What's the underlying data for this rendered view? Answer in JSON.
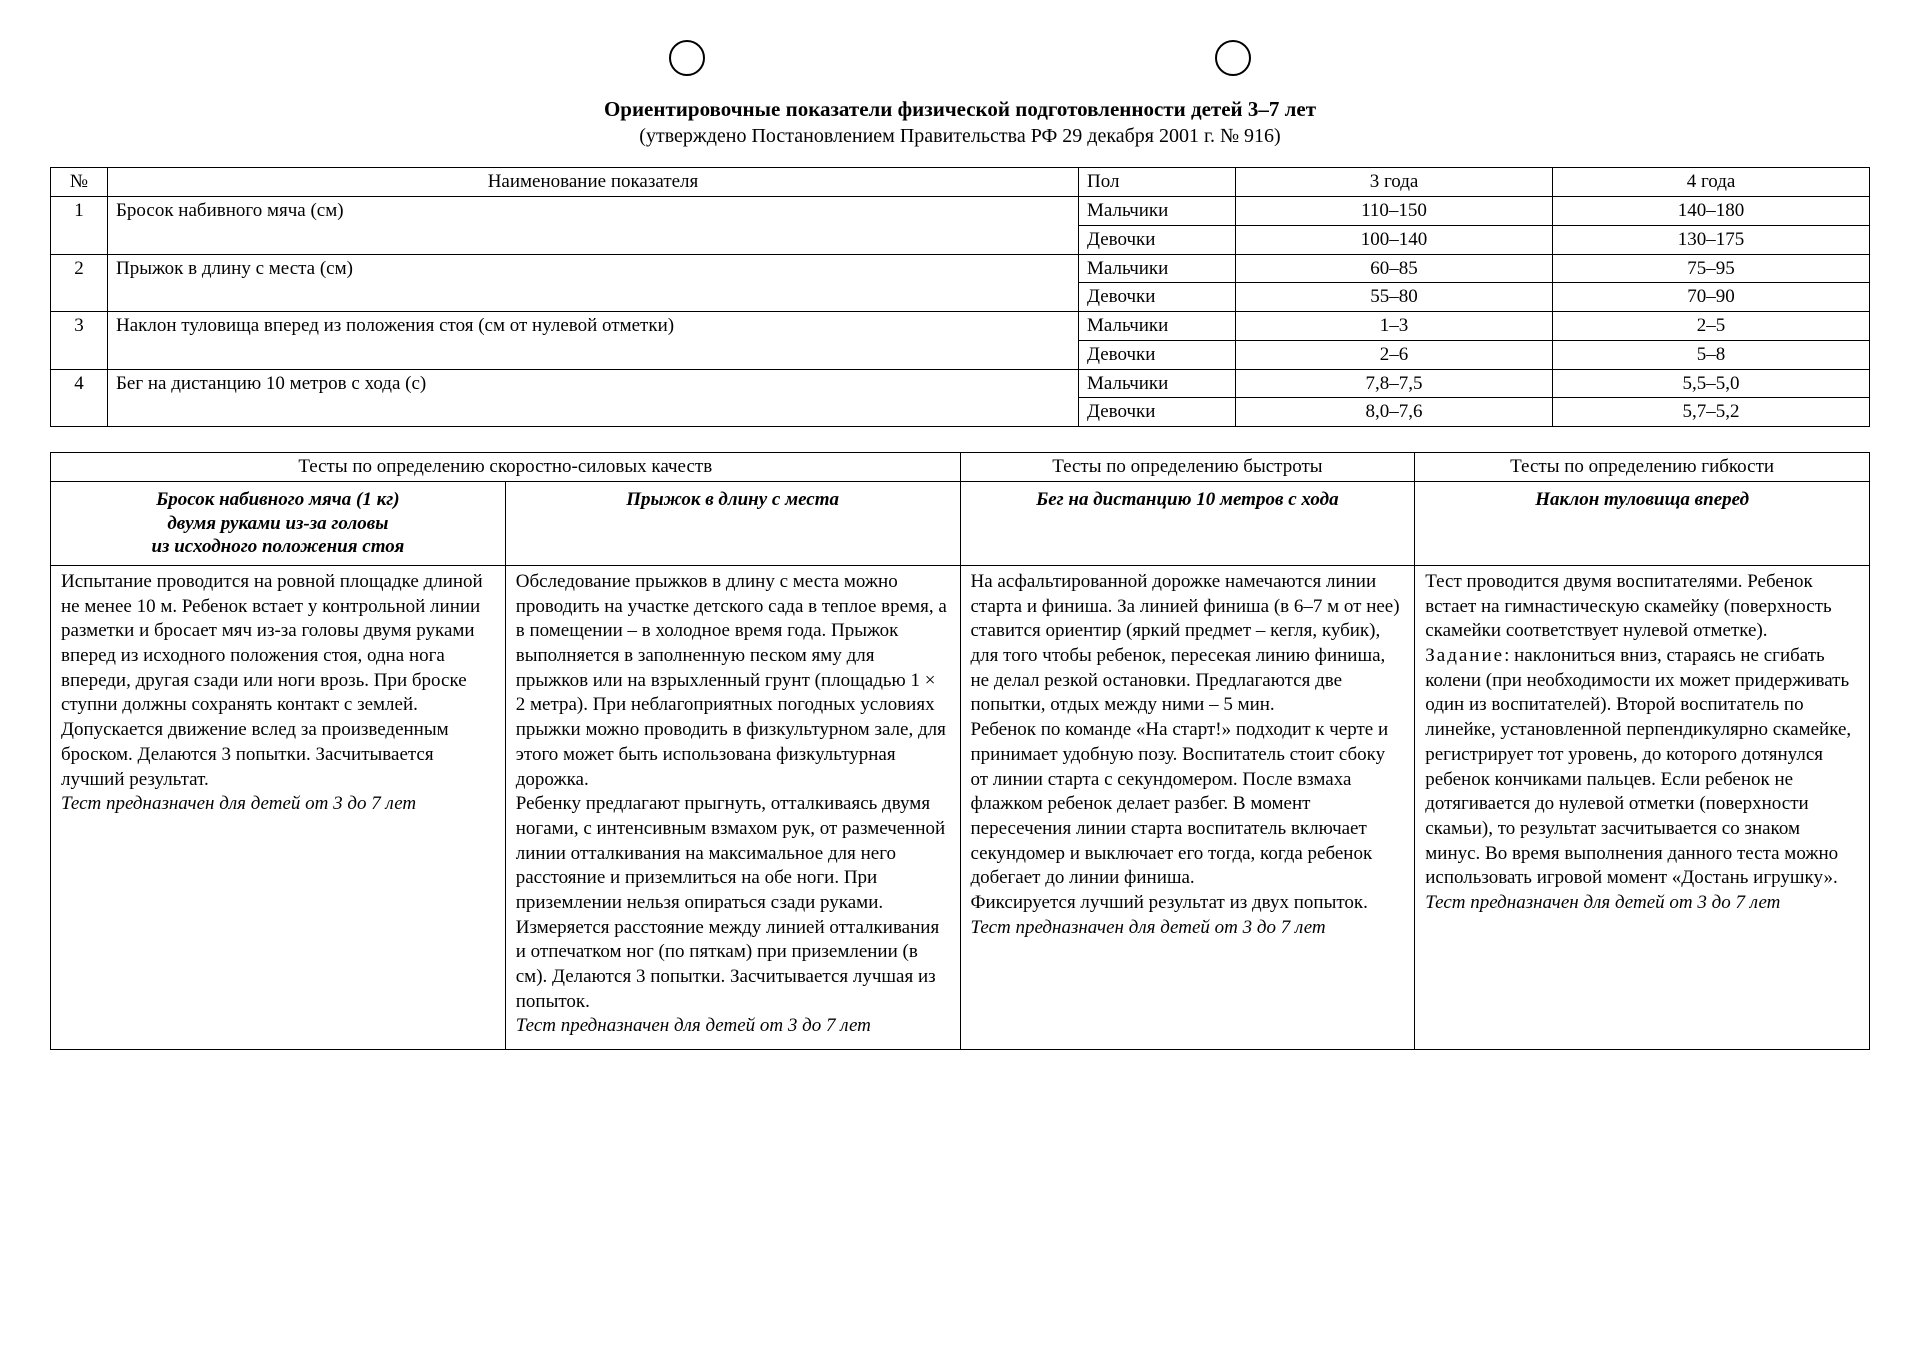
{
  "title": "Ориентировочные показатели физической подготовленности детей 3–7 лет",
  "subtitle": "(утверждено Постановлением Правительства РФ 29 декабря 2001 г. № 916)",
  "table1": {
    "headers": {
      "num": "№",
      "name": "Наименование показателя",
      "sex": "Пол",
      "y3": "3 года",
      "y4": "4 года"
    },
    "rows": [
      {
        "num": "1",
        "name": "Бросок набивного мяча (см)",
        "r": [
          {
            "sex": "Мальчики",
            "y3": "110–150",
            "y4": "140–180"
          },
          {
            "sex": "Девочки",
            "y3": "100–140",
            "y4": "130–175"
          }
        ]
      },
      {
        "num": "2",
        "name": "Прыжок в длину с места (см)",
        "r": [
          {
            "sex": "Мальчики",
            "y3": "60–85",
            "y4": "75–95"
          },
          {
            "sex": "Девочки",
            "y3": "55–80",
            "y4": "70–90"
          }
        ]
      },
      {
        "num": "3",
        "name": "Наклон туловища вперед из положения стоя (см от нулевой отметки)",
        "r": [
          {
            "sex": "Мальчики",
            "y3": "1–3",
            "y4": "2–5"
          },
          {
            "sex": "Девочки",
            "y3": "2–6",
            "y4": "5–8"
          }
        ]
      },
      {
        "num": "4",
        "name": "Бег на дистанцию 10 метров с хода (с)",
        "r": [
          {
            "sex": "Мальчики",
            "y3": "7,8–7,5",
            "y4": "5,5–5,0"
          },
          {
            "sex": "Девочки",
            "y3": "8,0–7,6",
            "y4": "5,7–5,2"
          }
        ]
      }
    ]
  },
  "table2": {
    "group_headers": {
      "g1": "Тесты по определению скоростно-силовых качеств",
      "g2": "Тесты по определению быстроты",
      "g3": "Тесты по определению гибкости"
    },
    "cols": [
      {
        "head": "Бросок набивного мяча (1 кг)\nдвумя руками из-за головы\nиз исходного положения стоя",
        "body": "Испытание проводится на ровной площадке длиной не менее 10 м. Ребенок встает у контрольной линии разметки и бросает мяч из-за головы двумя руками вперед из исходного положения стоя, одна нога впереди, другая сзади или ноги врозь. При броске ступни должны сохранять контакт с землей. Допускается движение вслед за произведенным броском. Делаются 3 попытки. Засчитывается лучший результат.",
        "foot": "Тест предназначен для детей от 3 до 7 лет"
      },
      {
        "head": "Прыжок в длину с места",
        "body": "Обследование прыжков в длину с места можно проводить на участке детского сада в теплое время, а в помещении – в холодное время года. Прыжок выполняется в заполненную песком яму для прыжков или на взрыхленный грунт (площадью 1 × 2 метра). При неблагоприятных погодных условиях прыжки можно проводить в физкультурном зале, для этого может быть использована физкультурная дорожка.\nРебенку предлагают прыгнуть, отталкиваясь двумя ногами, с интенсивным взмахом рук, от размеченной линии отталкивания на максимальное для него расстояние и приземлиться на обе ноги. При приземлении нельзя опираться сзади руками. Измеряется расстояние между линией отталкивания и отпечатком ног (по пяткам) при приземлении (в см). Делаются 3 попытки. Засчитывается лучшая из попыток.",
        "foot": "Тест предназначен для детей от 3 до 7 лет"
      },
      {
        "head": "Бег на дистанцию 10 метров с хода",
        "body": "На асфальтированной дорожке намечаются линии старта и финиша. За линией финиша (в 6–7 м от нее) ставится ориентир (яркий предмет – кегля, кубик), для того чтобы ребенок, пересекая линию финиша, не делал резкой остановки. Предлагаются две попытки, отдых между ними – 5 мин.\nРебенок по команде «На старт!» подходит к черте и принимает удобную позу. Воспитатель стоит сбоку от линии старта с секундомером. После взмаха флажком ребенок делает разбег. В момент пересечения линии старта воспитатель включает секундомер и выключает его тогда, когда ребенок добегает до линии финиша.\nФиксируется лучший результат из двух попыток.",
        "foot": "Тест предназначен для детей от 3 до 7 лет"
      },
      {
        "head": "Наклон туловища вперед",
        "body_pre": "Тест проводится двумя воспитателями. Ребенок встает на гимнастичес­кую скамейку (поверхность скамейки соответствует нулевой отметке).",
        "task_label": "Задание",
        "body_post": ": наклониться вниз, стараясь не сгибать колени (при необходимости их может придерживать один из воспитателей). Второй воспитатель по линейке, установленной перпендикулярно скамейке, регистрирует тот уровень, до которого дотянулся ребенок кончиками пальцев. Если ребенок не дотягивается до нулевой отметки (поверхности скамьи), то результат засчитывается со знаком минус. Во время выполнения данного теста можно использовать игровой момент «Достань игрушку».",
        "foot": "Тест предназначен для детей от 3 до 7 лет"
      }
    ]
  }
}
